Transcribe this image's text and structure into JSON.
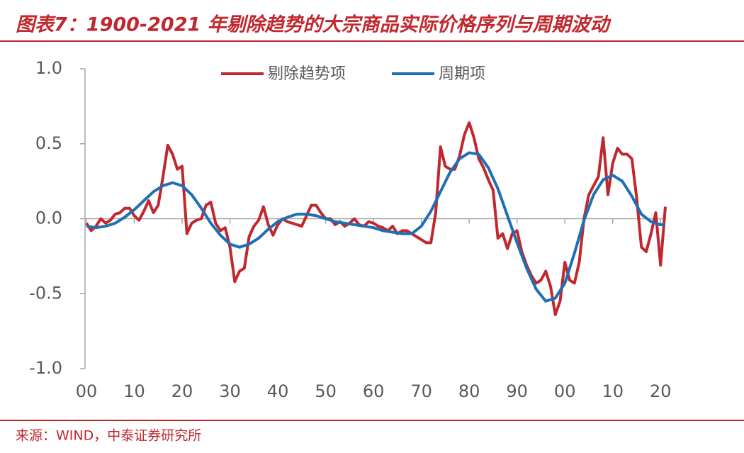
{
  "chart_data": {
    "type": "line",
    "title": "图表7：1900-2021 年剔除趋势的大宗商品实际价格序列与周期波动",
    "source": "来源：WIND，中泰证券研究所",
    "xlim": [
      1900,
      2021
    ],
    "ylim": [
      -1,
      1
    ],
    "xticks": [
      {
        "value": 1900,
        "label": "00"
      },
      {
        "value": 1910,
        "label": "10"
      },
      {
        "value": 1920,
        "label": "20"
      },
      {
        "value": 1930,
        "label": "30"
      },
      {
        "value": 1940,
        "label": "40"
      },
      {
        "value": 1950,
        "label": "50"
      },
      {
        "value": 1960,
        "label": "60"
      },
      {
        "value": 1970,
        "label": "70"
      },
      {
        "value": 1980,
        "label": "80"
      },
      {
        "value": 1990,
        "label": "90"
      },
      {
        "value": 2000,
        "label": "00"
      },
      {
        "value": 2010,
        "label": "10"
      },
      {
        "value": 2020,
        "label": "20"
      }
    ],
    "yticks": [
      {
        "value": 1,
        "label": "1.0"
      },
      0.5,
      {
        "value": 0,
        "label": "0.0"
      },
      -0.5,
      {
        "value": -1,
        "label": "-1.0"
      }
    ],
    "legend": "top",
    "series": [
      {
        "name": "剔除趋势项",
        "color": "#c0282e",
        "x": [
          1900,
          1901,
          1902,
          1903,
          1904,
          1905,
          1906,
          1907,
          1908,
          1909,
          1910,
          1911,
          1912,
          1913,
          1914,
          1915,
          1916,
          1917,
          1918,
          1919,
          1920,
          1921,
          1922,
          1923,
          1924,
          1925,
          1926,
          1927,
          1928,
          1929,
          1930,
          1931,
          1932,
          1933,
          1934,
          1935,
          1936,
          1937,
          1938,
          1939,
          1940,
          1941,
          1942,
          1943,
          1944,
          1945,
          1946,
          1947,
          1948,
          1949,
          1950,
          1951,
          1952,
          1953,
          1954,
          1955,
          1956,
          1957,
          1958,
          1959,
          1960,
          1961,
          1962,
          1963,
          1964,
          1965,
          1966,
          1967,
          1968,
          1969,
          1970,
          1971,
          1972,
          1973,
          1974,
          1975,
          1976,
          1977,
          1978,
          1979,
          1980,
          1981,
          1982,
          1983,
          1984,
          1985,
          1986,
          1987,
          1988,
          1989,
          1990,
          1991,
          1992,
          1993,
          1994,
          1995,
          1996,
          1997,
          1998,
          1999,
          2000,
          2001,
          2002,
          2003,
          2004,
          2005,
          2006,
          2007,
          2008,
          2009,
          2010,
          2011,
          2012,
          2013,
          2014,
          2015,
          2016,
          2017,
          2018,
          2019,
          2020,
          2021
        ],
        "values": [
          -0.03,
          -0.08,
          -0.05,
          0.0,
          -0.03,
          -0.01,
          0.03,
          0.04,
          0.07,
          0.07,
          0.02,
          -0.01,
          0.05,
          0.12,
          0.04,
          0.09,
          0.28,
          0.49,
          0.43,
          0.33,
          0.35,
          -0.1,
          -0.03,
          -0.01,
          0.0,
          0.09,
          0.11,
          -0.03,
          -0.08,
          -0.06,
          -0.19,
          -0.42,
          -0.35,
          -0.33,
          -0.12,
          -0.05,
          -0.01,
          0.08,
          -0.04,
          -0.11,
          -0.04,
          0.0,
          -0.02,
          -0.03,
          -0.04,
          -0.05,
          0.02,
          0.09,
          0.09,
          0.04,
          0.0,
          0.0,
          -0.04,
          -0.02,
          -0.05,
          -0.03,
          0.0,
          -0.04,
          -0.05,
          -0.02,
          -0.03,
          -0.05,
          -0.06,
          -0.08,
          -0.05,
          -0.1,
          -0.08,
          -0.08,
          -0.1,
          -0.12,
          -0.14,
          -0.16,
          -0.16,
          0.04,
          0.48,
          0.35,
          0.33,
          0.33,
          0.42,
          0.56,
          0.64,
          0.54,
          0.4,
          0.34,
          0.26,
          0.19,
          -0.13,
          -0.1,
          -0.2,
          -0.1,
          -0.08,
          -0.22,
          -0.31,
          -0.38,
          -0.43,
          -0.41,
          -0.35,
          -0.45,
          -0.64,
          -0.55,
          -0.29,
          -0.41,
          -0.43,
          -0.29,
          0.0,
          0.16,
          0.22,
          0.28,
          0.54,
          0.16,
          0.37,
          0.47,
          0.43,
          0.43,
          0.4,
          0.14,
          -0.19,
          -0.22,
          -0.1,
          0.04,
          -0.31,
          0.08
        ]
      },
      {
        "name": "周期项",
        "color": "#1f6fb4",
        "x": [
          1900,
          1902,
          1904,
          1906,
          1908,
          1910,
          1912,
          1914,
          1916,
          1918,
          1920,
          1922,
          1924,
          1926,
          1928,
          1930,
          1932,
          1934,
          1936,
          1938,
          1940,
          1942,
          1944,
          1946,
          1948,
          1950,
          1952,
          1954,
          1956,
          1958,
          1960,
          1962,
          1964,
          1966,
          1968,
          1970,
          1972,
          1974,
          1976,
          1978,
          1980,
          1982,
          1984,
          1986,
          1988,
          1990,
          1992,
          1994,
          1996,
          1998,
          2000,
          2002,
          2004,
          2006,
          2008,
          2010,
          2012,
          2014,
          2016,
          2018,
          2020,
          2021
        ],
        "values": [
          -0.05,
          -0.06,
          -0.05,
          -0.03,
          0.01,
          0.06,
          0.12,
          0.18,
          0.22,
          0.24,
          0.22,
          0.16,
          0.07,
          -0.03,
          -0.11,
          -0.17,
          -0.19,
          -0.17,
          -0.13,
          -0.07,
          -0.02,
          0.01,
          0.03,
          0.03,
          0.02,
          0.0,
          -0.02,
          -0.03,
          -0.04,
          -0.05,
          -0.06,
          -0.08,
          -0.09,
          -0.1,
          -0.1,
          -0.05,
          0.05,
          0.18,
          0.31,
          0.4,
          0.44,
          0.43,
          0.34,
          0.2,
          0.02,
          -0.16,
          -0.33,
          -0.47,
          -0.55,
          -0.53,
          -0.43,
          -0.23,
          -0.01,
          0.16,
          0.26,
          0.29,
          0.25,
          0.15,
          0.03,
          -0.02,
          -0.04,
          -0.04
        ]
      }
    ]
  }
}
